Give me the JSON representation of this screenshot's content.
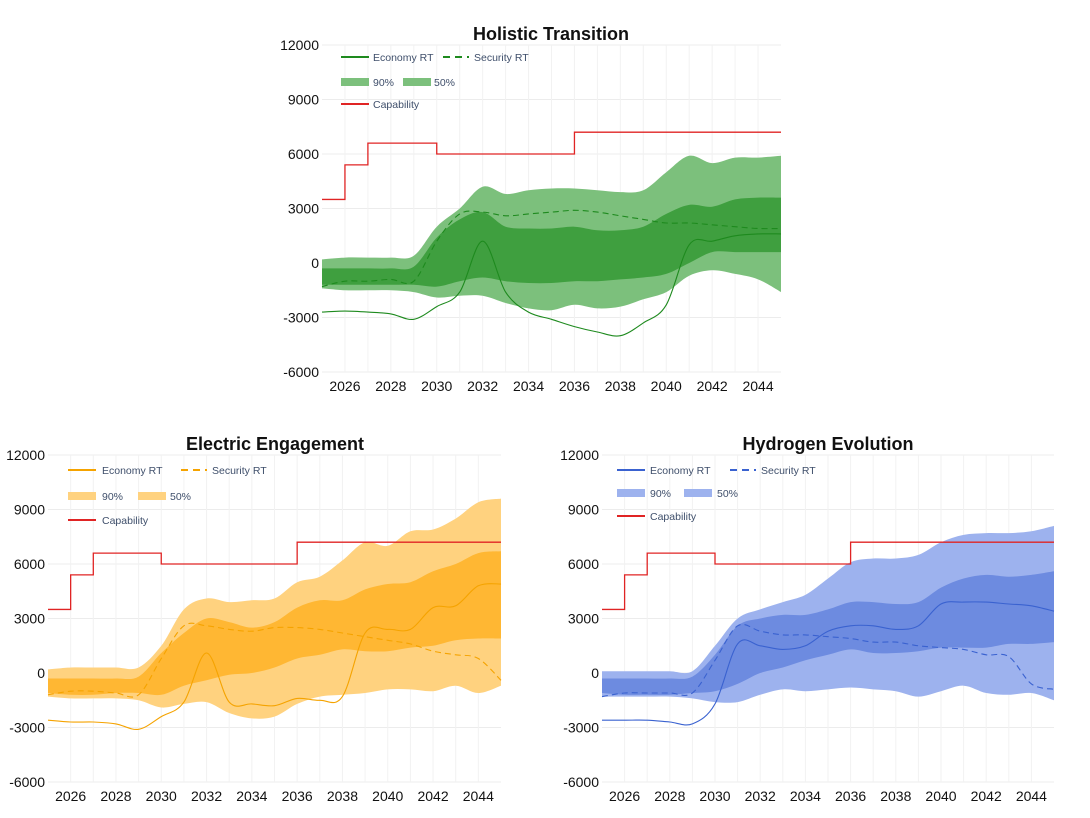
{
  "chart_data": [
    {
      "type": "line",
      "title": "Holistic Transition",
      "xlabel": "",
      "ylabel": "",
      "xlim": [
        2025,
        2045
      ],
      "ylim": [
        -6000,
        12000
      ],
      "x_ticks": [
        "2026",
        "2028",
        "2030",
        "2032",
        "2034",
        "2036",
        "2038",
        "2040",
        "2042",
        "2044"
      ],
      "y_ticks": [
        "12000",
        "9000",
        "6000",
        "3000",
        "0",
        "-3000",
        "-6000"
      ],
      "legend": [
        "Economy RT",
        "Security RT",
        "90%",
        "50%",
        "Capability"
      ],
      "colors": {
        "line": "#1e8a1e",
        "band90": "#7cc07c",
        "band50": "#3f9f3f",
        "capability": "#e02424"
      },
      "x": [
        2025,
        2026,
        2027,
        2028,
        2029,
        2030,
        2031,
        2032,
        2033,
        2034,
        2035,
        2036,
        2037,
        2038,
        2039,
        2040,
        2041,
        2042,
        2043,
        2044,
        2045
      ],
      "economy_rt": [
        -2700,
        -2650,
        -2700,
        -2800,
        -3100,
        -2400,
        -1600,
        1200,
        -1600,
        -2700,
        -3100,
        -3500,
        -3800,
        -4000,
        -3300,
        -2300,
        1000,
        1200,
        1500,
        1600,
        1600
      ],
      "security_rt": [
        -1300,
        -1000,
        -1000,
        -900,
        -1000,
        1200,
        2700,
        2800,
        2600,
        2700,
        2800,
        2900,
        2800,
        2600,
        2400,
        2200,
        2200,
        2100,
        2000,
        1900,
        1900
      ],
      "band90_upper": [
        200,
        300,
        300,
        300,
        400,
        2000,
        3000,
        4200,
        3800,
        4000,
        4100,
        4100,
        4000,
        3900,
        4000,
        5000,
        5900,
        5500,
        5800,
        5800,
        5900
      ],
      "band90_lower": [
        -1400,
        -1500,
        -1500,
        -1500,
        -1600,
        -1900,
        -1800,
        -1800,
        -2200,
        -2500,
        -2600,
        -2300,
        -2500,
        -2400,
        -2000,
        -1600,
        -700,
        -400,
        -600,
        -900,
        -1600
      ],
      "band50_upper": [
        -300,
        -300,
        -300,
        -300,
        -200,
        1400,
        2400,
        2800,
        2000,
        1900,
        1900,
        2000,
        1800,
        1800,
        2000,
        2700,
        3200,
        3100,
        3500,
        3600,
        3600
      ],
      "band50_lower": [
        -1200,
        -1200,
        -1200,
        -1200,
        -1200,
        -1300,
        -1000,
        -800,
        -1000,
        -1100,
        -1100,
        -1000,
        -1000,
        -900,
        -800,
        -600,
        0,
        600,
        600,
        600,
        600
      ],
      "capability_steps": [
        [
          2025,
          3500
        ],
        [
          2026,
          5400
        ],
        [
          2027,
          6600
        ],
        [
          2030,
          6000
        ],
        [
          2036,
          7200
        ],
        [
          2045,
          7200
        ]
      ]
    },
    {
      "type": "line",
      "title": "Electric Engagement",
      "xlabel": "",
      "ylabel": "",
      "xlim": [
        2025,
        2045
      ],
      "ylim": [
        -6000,
        12000
      ],
      "x_ticks": [
        "2026",
        "2028",
        "2030",
        "2032",
        "2034",
        "2036",
        "2038",
        "2040",
        "2042",
        "2044"
      ],
      "y_ticks": [
        "12000",
        "9000",
        "6000",
        "3000",
        "0",
        "-3000",
        "-6000"
      ],
      "legend": [
        "Economy RT",
        "Security RT",
        "90%",
        "50%",
        "Capability"
      ],
      "colors": {
        "line": "#f5a300",
        "band90": "#ffd27f",
        "band50": "#ffb733",
        "capability": "#e02424"
      },
      "x": [
        2025,
        2026,
        2027,
        2028,
        2029,
        2030,
        2031,
        2032,
        2033,
        2034,
        2035,
        2036,
        2037,
        2038,
        2039,
        2040,
        2041,
        2042,
        2043,
        2044,
        2045
      ],
      "economy_rt": [
        -2600,
        -2700,
        -2700,
        -2800,
        -3100,
        -2400,
        -1600,
        1100,
        -1600,
        -1700,
        -1800,
        -1400,
        -1500,
        -1300,
        2200,
        2400,
        2400,
        3600,
        3700,
        4800,
        4900
      ],
      "security_rt": [
        -1200,
        -1000,
        -1000,
        -1100,
        -1200,
        800,
        2600,
        2600,
        2400,
        2300,
        2500,
        2500,
        2400,
        2200,
        2000,
        1800,
        1600,
        1200,
        1000,
        800,
        -400
      ],
      "band90_upper": [
        200,
        300,
        300,
        300,
        300,
        1500,
        3500,
        4100,
        3900,
        4000,
        4100,
        5000,
        5300,
        6200,
        7200,
        7000,
        7800,
        7900,
        8500,
        9400,
        9600
      ],
      "band90_lower": [
        -1300,
        -1400,
        -1400,
        -1400,
        -1500,
        -1900,
        -1700,
        -1600,
        -2200,
        -2500,
        -2400,
        -1700,
        -1300,
        -1200,
        -1100,
        -900,
        -900,
        -1000,
        -700,
        -1100,
        -700
      ],
      "band50_upper": [
        -300,
        -300,
        -300,
        -300,
        -200,
        1100,
        2200,
        3000,
        2800,
        2500,
        2800,
        3600,
        4000,
        4000,
        4600,
        4900,
        5000,
        5600,
        6000,
        6600,
        6700
      ],
      "band50_lower": [
        -1100,
        -1200,
        -1200,
        -1100,
        -1100,
        -1200,
        -700,
        -400,
        -100,
        0,
        300,
        800,
        1000,
        1300,
        1200,
        1200,
        1400,
        1500,
        1800,
        1900,
        1900
      ],
      "capability_steps": [
        [
          2025,
          3500
        ],
        [
          2026,
          5400
        ],
        [
          2027,
          6600
        ],
        [
          2030,
          6000
        ],
        [
          2036,
          7200
        ],
        [
          2045,
          7200
        ]
      ]
    },
    {
      "type": "line",
      "title": "Hydrogen Evolution",
      "xlabel": "",
      "ylabel": "",
      "xlim": [
        2025,
        2045
      ],
      "ylim": [
        -6000,
        12000
      ],
      "x_ticks": [
        "2026",
        "2028",
        "2030",
        "2032",
        "2034",
        "2036",
        "2038",
        "2040",
        "2042",
        "2044"
      ],
      "y_ticks": [
        "12000",
        "9000",
        "6000",
        "3000",
        "0",
        "-3000",
        "-6000"
      ],
      "legend": [
        "Economy RT",
        "Security RT",
        "90%",
        "50%",
        "Capability"
      ],
      "colors": {
        "line": "#3a62d0",
        "band90": "#9db2ee",
        "band50": "#6d8be0",
        "capability": "#e02424"
      },
      "x": [
        2025,
        2026,
        2027,
        2028,
        2029,
        2030,
        2031,
        2032,
        2033,
        2034,
        2035,
        2036,
        2037,
        2038,
        2039,
        2040,
        2041,
        2042,
        2043,
        2044,
        2045
      ],
      "economy_rt": [
        -2600,
        -2600,
        -2600,
        -2700,
        -2800,
        -1700,
        1600,
        1500,
        1300,
        1500,
        2300,
        2600,
        2600,
        2400,
        2600,
        3800,
        3900,
        3900,
        3800,
        3700,
        3400
      ],
      "security_rt": [
        -1300,
        -1100,
        -1100,
        -1100,
        -1100,
        700,
        2600,
        2300,
        2100,
        2100,
        2000,
        1900,
        1700,
        1700,
        1500,
        1400,
        1300,
        1000,
        900,
        -600,
        -900
      ],
      "band90_upper": [
        100,
        100,
        100,
        100,
        100,
        1500,
        3000,
        3500,
        3900,
        4300,
        5200,
        6100,
        6300,
        6300,
        6500,
        7200,
        7600,
        7700,
        7700,
        7800,
        8100
      ],
      "band90_lower": [
        -1300,
        -1300,
        -1300,
        -1300,
        -1400,
        -1600,
        -1600,
        -1200,
        -900,
        -1000,
        -900,
        -800,
        -900,
        -1000,
        -1300,
        -1000,
        -700,
        -1100,
        -1200,
        -1100,
        -1500
      ],
      "band50_upper": [
        -300,
        -300,
        -300,
        -300,
        -200,
        1000,
        2600,
        3000,
        3200,
        3200,
        3500,
        3900,
        3900,
        3800,
        3900,
        4700,
        5200,
        5400,
        5300,
        5400,
        5600
      ],
      "band50_lower": [
        -1100,
        -1200,
        -1200,
        -1200,
        -1100,
        -1000,
        -600,
        0,
        300,
        700,
        1000,
        1300,
        1100,
        1100,
        1200,
        1400,
        1400,
        1400,
        1600,
        1600,
        1700
      ],
      "capability_steps": [
        [
          2025,
          3500
        ],
        [
          2026,
          5400
        ],
        [
          2027,
          6600
        ],
        [
          2030,
          6000
        ],
        [
          2036,
          7200
        ],
        [
          2045,
          7200
        ]
      ]
    }
  ]
}
